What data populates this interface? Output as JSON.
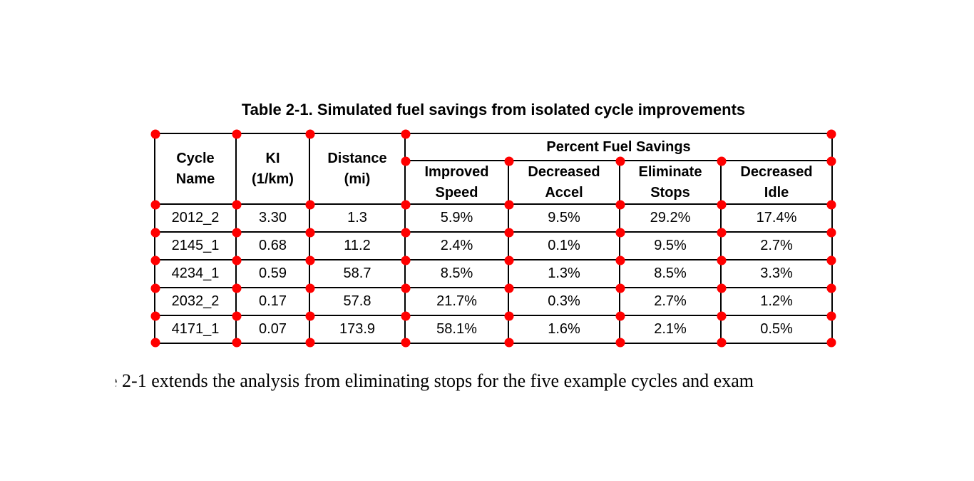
{
  "page": {
    "background": "#ffffff",
    "marker_color": "#ff0000",
    "line_color": "#000000"
  },
  "caption": "Table 2-1. Simulated fuel savings from isolated cycle improvements",
  "table": {
    "group_header": "Percent Fuel Savings",
    "columns": [
      {
        "id": "cycle_name",
        "label_lines": [
          "Cycle",
          "Name"
        ]
      },
      {
        "id": "ki",
        "label_lines": [
          "KI",
          "(1/km)"
        ]
      },
      {
        "id": "distance",
        "label_lines": [
          "Distance",
          "(mi)"
        ]
      },
      {
        "id": "improved_speed",
        "label_lines": [
          "Improved",
          "Speed"
        ]
      },
      {
        "id": "decreased_accel",
        "label_lines": [
          "Decreased",
          "Accel"
        ]
      },
      {
        "id": "eliminate_stops",
        "label_lines": [
          "Eliminate",
          "Stops"
        ]
      },
      {
        "id": "decreased_idle",
        "label_lines": [
          "Decreased",
          "Idle"
        ]
      }
    ],
    "rows": [
      [
        "2012_2",
        "3.30",
        "1.3",
        "5.9%",
        "9.5%",
        "29.2%",
        "17.4%"
      ],
      [
        "2145_1",
        "0.68",
        "11.2",
        "2.4%",
        "0.1%",
        "9.5%",
        "2.7%"
      ],
      [
        "4234_1",
        "0.59",
        "58.7",
        "8.5%",
        "1.3%",
        "8.5%",
        "3.3%"
      ],
      [
        "2032_2",
        "0.17",
        "57.8",
        "21.7%",
        "0.3%",
        "2.7%",
        "1.2%"
      ],
      [
        "4171_1",
        "0.07",
        "173.9",
        "58.1%",
        "1.6%",
        "2.1%",
        "0.5%"
      ]
    ]
  },
  "paragraph": {
    "clipped_prefix": "e",
    "text": "2-1 extends the analysis from eliminating stops for the five example cycles and exam"
  },
  "chart_data": {
    "type": "table",
    "title": "Table 2-1. Simulated fuel savings from isolated cycle improvements",
    "column_headers": [
      "Cycle Name",
      "KI (1/km)",
      "Distance (mi)",
      "Improved Speed",
      "Decreased Accel",
      "Eliminate Stops",
      "Decreased Idle"
    ],
    "group_header": {
      "label": "Percent Fuel Savings",
      "spans_columns": [
        "Improved Speed",
        "Decreased Accel",
        "Eliminate Stops",
        "Decreased Idle"
      ]
    },
    "rows": [
      {
        "cycle_name": "2012_2",
        "ki_per_km": 3.3,
        "distance_mi": 1.3,
        "improved_speed_pct": 5.9,
        "decreased_accel_pct": 9.5,
        "eliminate_stops_pct": 29.2,
        "decreased_idle_pct": 17.4
      },
      {
        "cycle_name": "2145_1",
        "ki_per_km": 0.68,
        "distance_mi": 11.2,
        "improved_speed_pct": 2.4,
        "decreased_accel_pct": 0.1,
        "eliminate_stops_pct": 9.5,
        "decreased_idle_pct": 2.7
      },
      {
        "cycle_name": "4234_1",
        "ki_per_km": 0.59,
        "distance_mi": 58.7,
        "improved_speed_pct": 8.5,
        "decreased_accel_pct": 1.3,
        "eliminate_stops_pct": 8.5,
        "decreased_idle_pct": 3.3
      },
      {
        "cycle_name": "2032_2",
        "ki_per_km": 0.17,
        "distance_mi": 57.8,
        "improved_speed_pct": 21.7,
        "decreased_accel_pct": 0.3,
        "eliminate_stops_pct": 2.7,
        "decreased_idle_pct": 1.2
      },
      {
        "cycle_name": "4171_1",
        "ki_per_km": 0.07,
        "distance_mi": 173.9,
        "improved_speed_pct": 58.1,
        "decreased_accel_pct": 1.6,
        "eliminate_stops_pct": 2.1,
        "decreased_idle_pct": 0.5
      }
    ]
  }
}
